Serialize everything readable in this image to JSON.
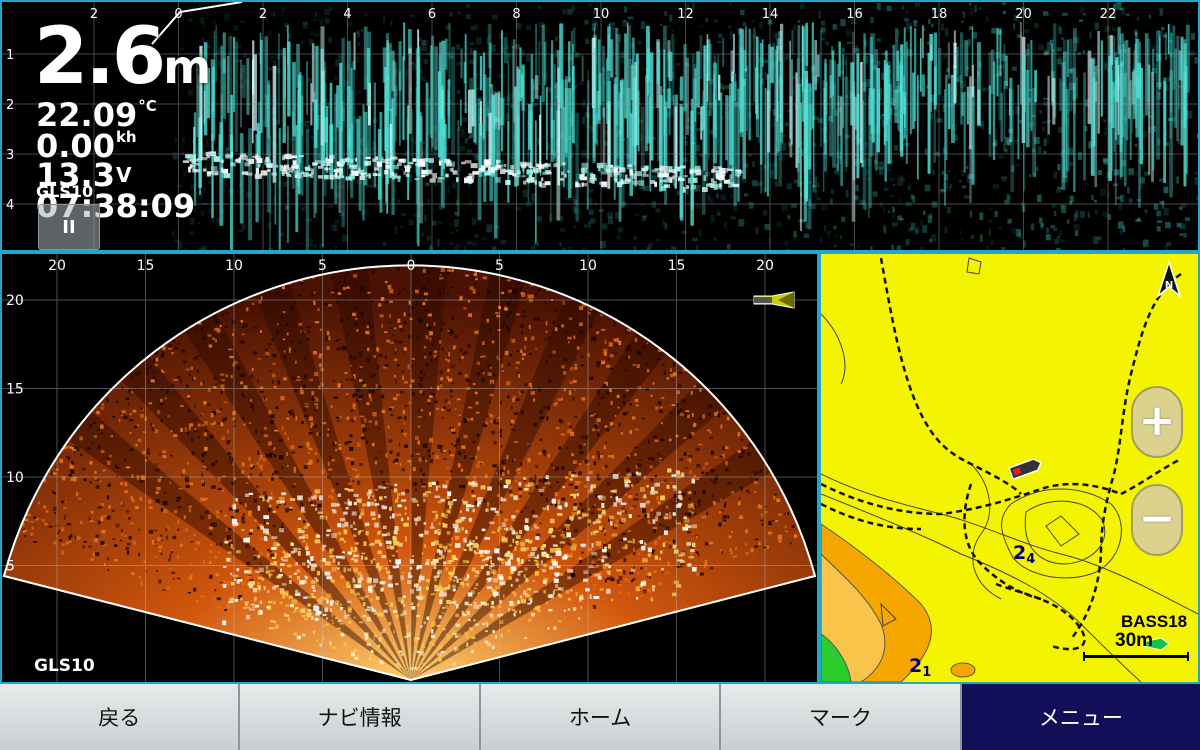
{
  "live_scope": {
    "depth_value": "2.6",
    "depth_unit": "m",
    "water_temp_value": "22.09",
    "water_temp_unit": "°C",
    "speed_value": "0.00",
    "speed_unit": "kh",
    "voltage_value": "13.3",
    "voltage_unit": "V",
    "time": "07:38:09",
    "sonar_name": "GLS10",
    "pause_symbol": "II",
    "x_ticks": [
      "2",
      "0",
      "2",
      "4",
      "6",
      "8",
      "10",
      "12",
      "14",
      "16",
      "18",
      "20",
      "22"
    ],
    "y_ticks": [
      "1",
      "2",
      "3",
      "4"
    ],
    "palette_color": "#3fd8d0"
  },
  "fan_sonar": {
    "sonar_name": "GLS10",
    "x_ticks": [
      "20",
      "15",
      "10",
      "5",
      "0",
      "5",
      "10",
      "15",
      "20"
    ],
    "y_ticks": [
      "20",
      "15",
      "10",
      "5"
    ],
    "palette_color": "#e07a1a"
  },
  "map": {
    "depth_labels": [
      {
        "main": "2",
        "sub": "4"
      },
      {
        "main": "2",
        "sub": "1"
      }
    ],
    "chart_source": "BASS18",
    "scale_label": "30m",
    "zoom_in_symbol": "+",
    "zoom_out_symbol": "−",
    "compass_letter": "N",
    "land_color": "#f4f400",
    "shallow_color": "#f5a700",
    "green_color": "#2bcc2b"
  },
  "nav": {
    "back": "戻る",
    "nav_info": "ナビ情報",
    "home": "ホーム",
    "mark": "マーク",
    "menu": "メニュー"
  }
}
